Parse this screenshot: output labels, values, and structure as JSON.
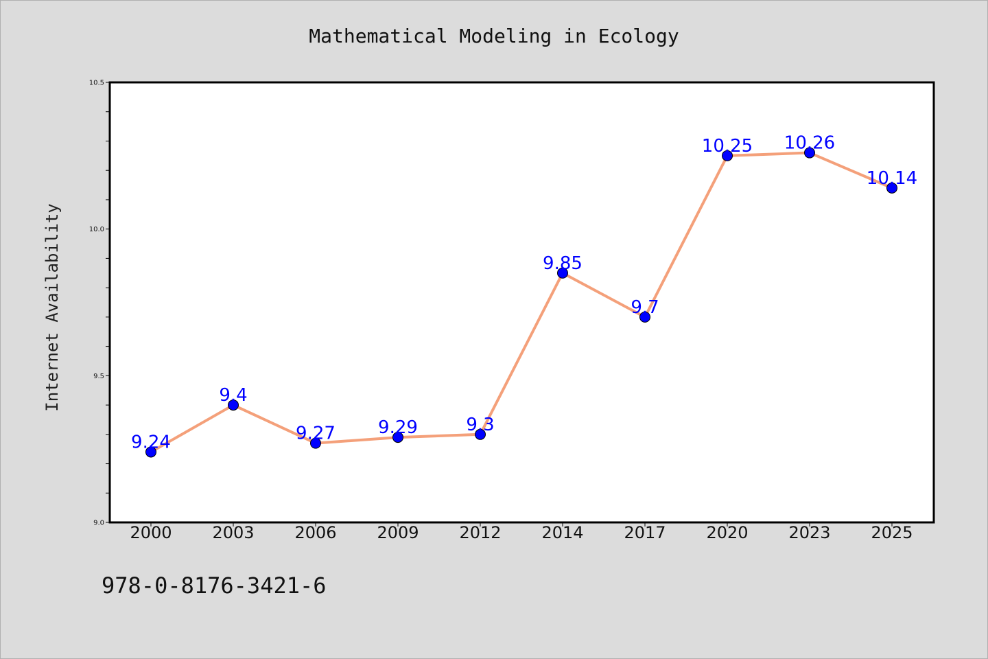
{
  "chart_data": {
    "type": "line",
    "title": "Mathematical Modeling in Ecology",
    "xlabel": "",
    "ylabel": "Internet Availability",
    "categories": [
      "2000",
      "2003",
      "2006",
      "2009",
      "2012",
      "2014",
      "2017",
      "2020",
      "2023",
      "2025"
    ],
    "series": [
      {
        "values": [
          9.24,
          9.4,
          9.27,
          9.29,
          9.3,
          9.85,
          9.7,
          10.25,
          10.26,
          10.14
        ],
        "labels": [
          "9.24",
          "9.4",
          "9.27",
          "9.29",
          "9.3",
          "9.85",
          "9.7",
          "10.25",
          "10.26",
          "10.14"
        ]
      }
    ],
    "ylim": [
      9.0,
      10.5
    ],
    "yticks": [
      "9.0",
      "9.5",
      "10.0",
      "10.5"
    ],
    "yticks_minor_step": 0.1,
    "grid": false,
    "legend": "none",
    "colors": {
      "line": "#f4a07a",
      "marker": "#0000ff",
      "marker_edge": "#000000",
      "label": "#0000ff",
      "plot_bg": "#ffffff",
      "figure_bg": "#dcdcdc"
    }
  },
  "annotation": {
    "isbn": "978-0-8176-3421-6"
  }
}
